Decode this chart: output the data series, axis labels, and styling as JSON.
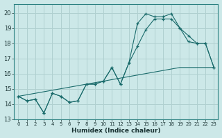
{
  "xlabel": "Humidex (Indice chaleur)",
  "bg_color": "#cce8e8",
  "grid_color": "#b0d0d0",
  "line_color": "#1a6b6b",
  "xlim": [
    -0.5,
    23.5
  ],
  "ylim": [
    13,
    20.6
  ],
  "xticks": [
    0,
    1,
    2,
    3,
    4,
    5,
    6,
    7,
    8,
    9,
    10,
    11,
    12,
    13,
    14,
    15,
    16,
    17,
    18,
    19,
    20,
    21,
    22,
    23
  ],
  "yticks": [
    13,
    14,
    15,
    16,
    17,
    18,
    19,
    20
  ],
  "line1_x": [
    0,
    1,
    2,
    3,
    4,
    5,
    6,
    7,
    8,
    9,
    10,
    11,
    12,
    13,
    14,
    15,
    16,
    17,
    18,
    19,
    20,
    21,
    22,
    23
  ],
  "line1_y": [
    14.5,
    14.2,
    14.3,
    13.4,
    14.7,
    14.5,
    14.1,
    14.2,
    15.3,
    15.3,
    15.5,
    16.4,
    15.3,
    16.7,
    19.3,
    19.95,
    19.75,
    19.75,
    19.95,
    19.0,
    18.1,
    18.0,
    18.0,
    16.4
  ],
  "line2_x": [
    0,
    1,
    2,
    3,
    4,
    5,
    6,
    7,
    8,
    9,
    10,
    11,
    12,
    13,
    14,
    15,
    16,
    17,
    18,
    19,
    20,
    21,
    22,
    23
  ],
  "line2_y": [
    14.5,
    14.2,
    14.3,
    13.4,
    14.7,
    14.5,
    14.1,
    14.2,
    15.3,
    15.3,
    15.5,
    16.4,
    15.3,
    16.7,
    17.8,
    18.9,
    19.6,
    19.6,
    19.6,
    19.0,
    18.5,
    18.0,
    18.0,
    16.4
  ],
  "line3_x": [
    0,
    1,
    2,
    3,
    4,
    5,
    6,
    7,
    8,
    9,
    10,
    11,
    12,
    13,
    14,
    15,
    16,
    17,
    18,
    19,
    20,
    21,
    22,
    23
  ],
  "line3_y": [
    14.5,
    14.6,
    14.7,
    14.8,
    14.9,
    15.0,
    15.1,
    15.2,
    15.3,
    15.4,
    15.5,
    15.6,
    15.7,
    15.8,
    15.9,
    16.0,
    16.1,
    16.2,
    16.3,
    16.4,
    16.4,
    16.4,
    16.4,
    16.4
  ]
}
